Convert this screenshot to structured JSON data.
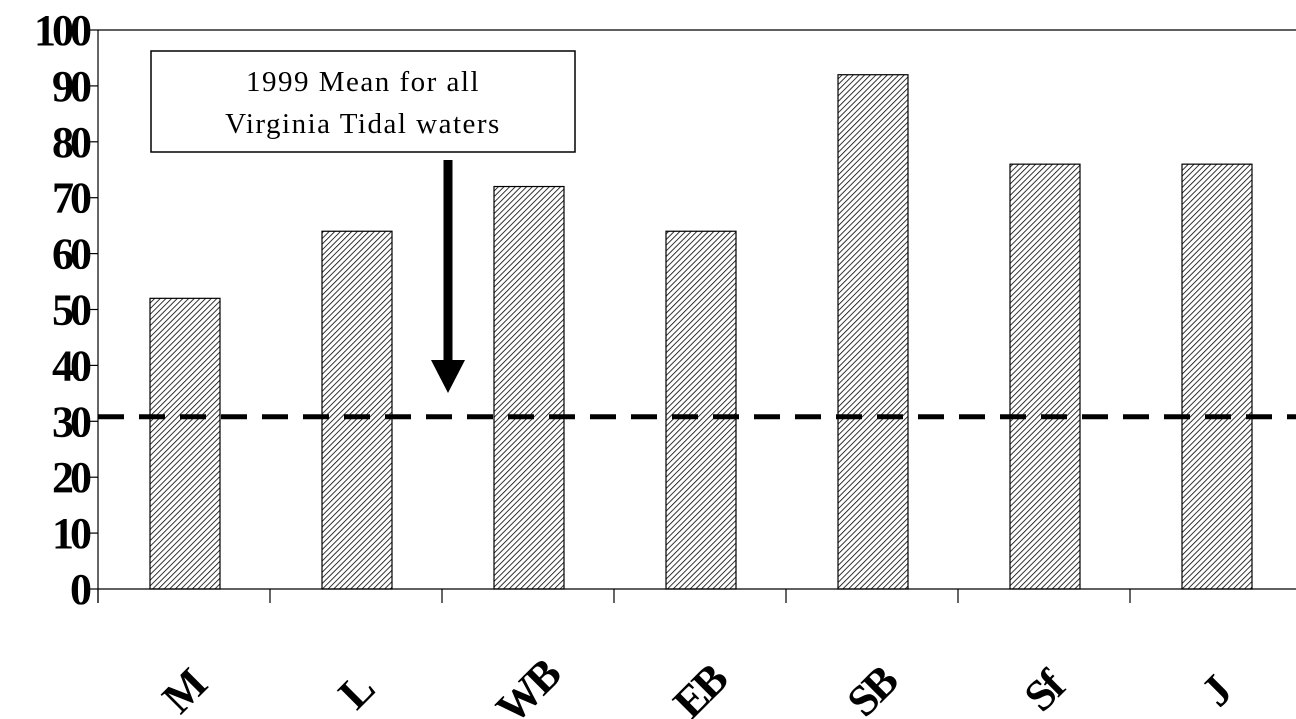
{
  "chart_data": {
    "type": "bar",
    "categories": [
      "M",
      "L",
      "WB",
      "EB",
      "SB",
      "Sf",
      "J"
    ],
    "values": [
      52,
      64,
      72,
      64,
      92,
      76,
      76
    ],
    "ylim": [
      0,
      100
    ],
    "yticks": [
      0,
      10,
      20,
      30,
      40,
      50,
      60,
      70,
      80,
      90,
      100
    ],
    "reference_line": {
      "value": 31,
      "style": "dashed"
    },
    "annotation": {
      "lines": [
        "1999 Mean for all",
        "Virginia Tidal waters"
      ],
      "arrow_target_value": 31
    },
    "bar_fill": "diagonal-hatch",
    "colors": {
      "bar_fill": "#ffffff",
      "hatch": "#000000",
      "line": "#000000"
    },
    "grid": false,
    "legend": "none"
  }
}
